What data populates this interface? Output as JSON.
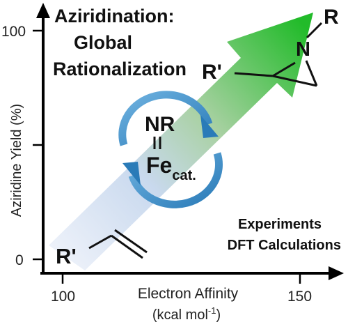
{
  "graphic": {
    "title_line1": "Aziridination:",
    "title_line2": "Global",
    "title_line3": "Rationalization",
    "y_axis_label": "Aziridine Yield (%)",
    "x_axis_label": "Electron Affinity",
    "x_axis_unit": "(kcal mol",
    "x_axis_unit_sup": "-1",
    "x_axis_unit_close": ")",
    "y_ticks": [
      "100",
      "0"
    ],
    "x_ticks": [
      "100",
      "150"
    ],
    "substrate_label": "R'",
    "product_r_label": "R",
    "product_n_label": "N",
    "product_rprime_label": "R'",
    "catalyst_top": "NR",
    "catalyst_bond": "=",
    "catalyst_metal": "Fe",
    "catalyst_sub": "cat.",
    "method_line1": "Experiments",
    "method_line2": "DFT Calculations"
  },
  "colors": {
    "arrow_start": "#dfe8f5",
    "arrow_mid": "#9fcb9a",
    "arrow_end": "#2fbf35",
    "cycle_arrow": "#3a8fca",
    "axis": "#000000",
    "text": "#111111"
  }
}
